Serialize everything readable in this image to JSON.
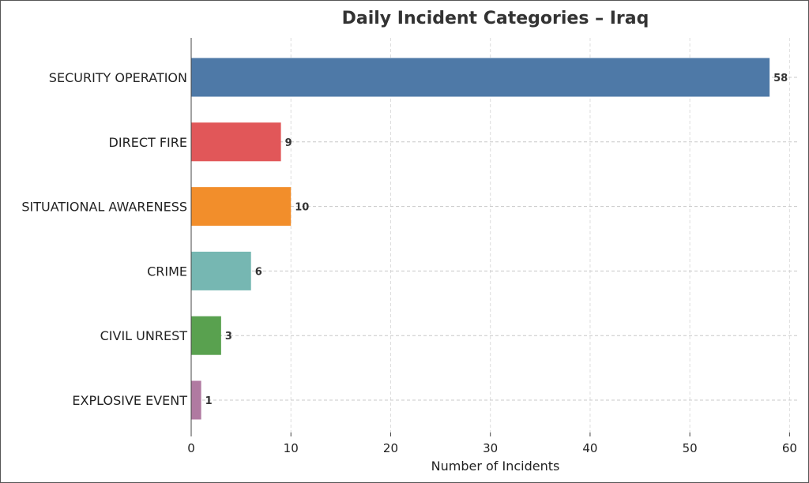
{
  "chart_data": {
    "type": "bar",
    "orientation": "horizontal",
    "title": "Daily Incident Categories – Iraq",
    "xlabel": "Number of Incidents",
    "ylabel": "",
    "xlim": [
      0,
      61
    ],
    "xticks": [
      0,
      10,
      20,
      30,
      40,
      50,
      60
    ],
    "grid": true,
    "categories": [
      "SECURITY OPERATION",
      "DIRECT FIRE",
      "SITUATIONAL AWARENESS",
      "CRIME",
      "CIVIL UNREST",
      "EXPLOSIVE EVENT"
    ],
    "values": [
      58,
      9,
      10,
      6,
      3,
      1
    ],
    "colors": [
      "#4e79a7",
      "#e15759",
      "#f28e2b",
      "#76b7b2",
      "#59a14f",
      "#b07aa1"
    ]
  }
}
